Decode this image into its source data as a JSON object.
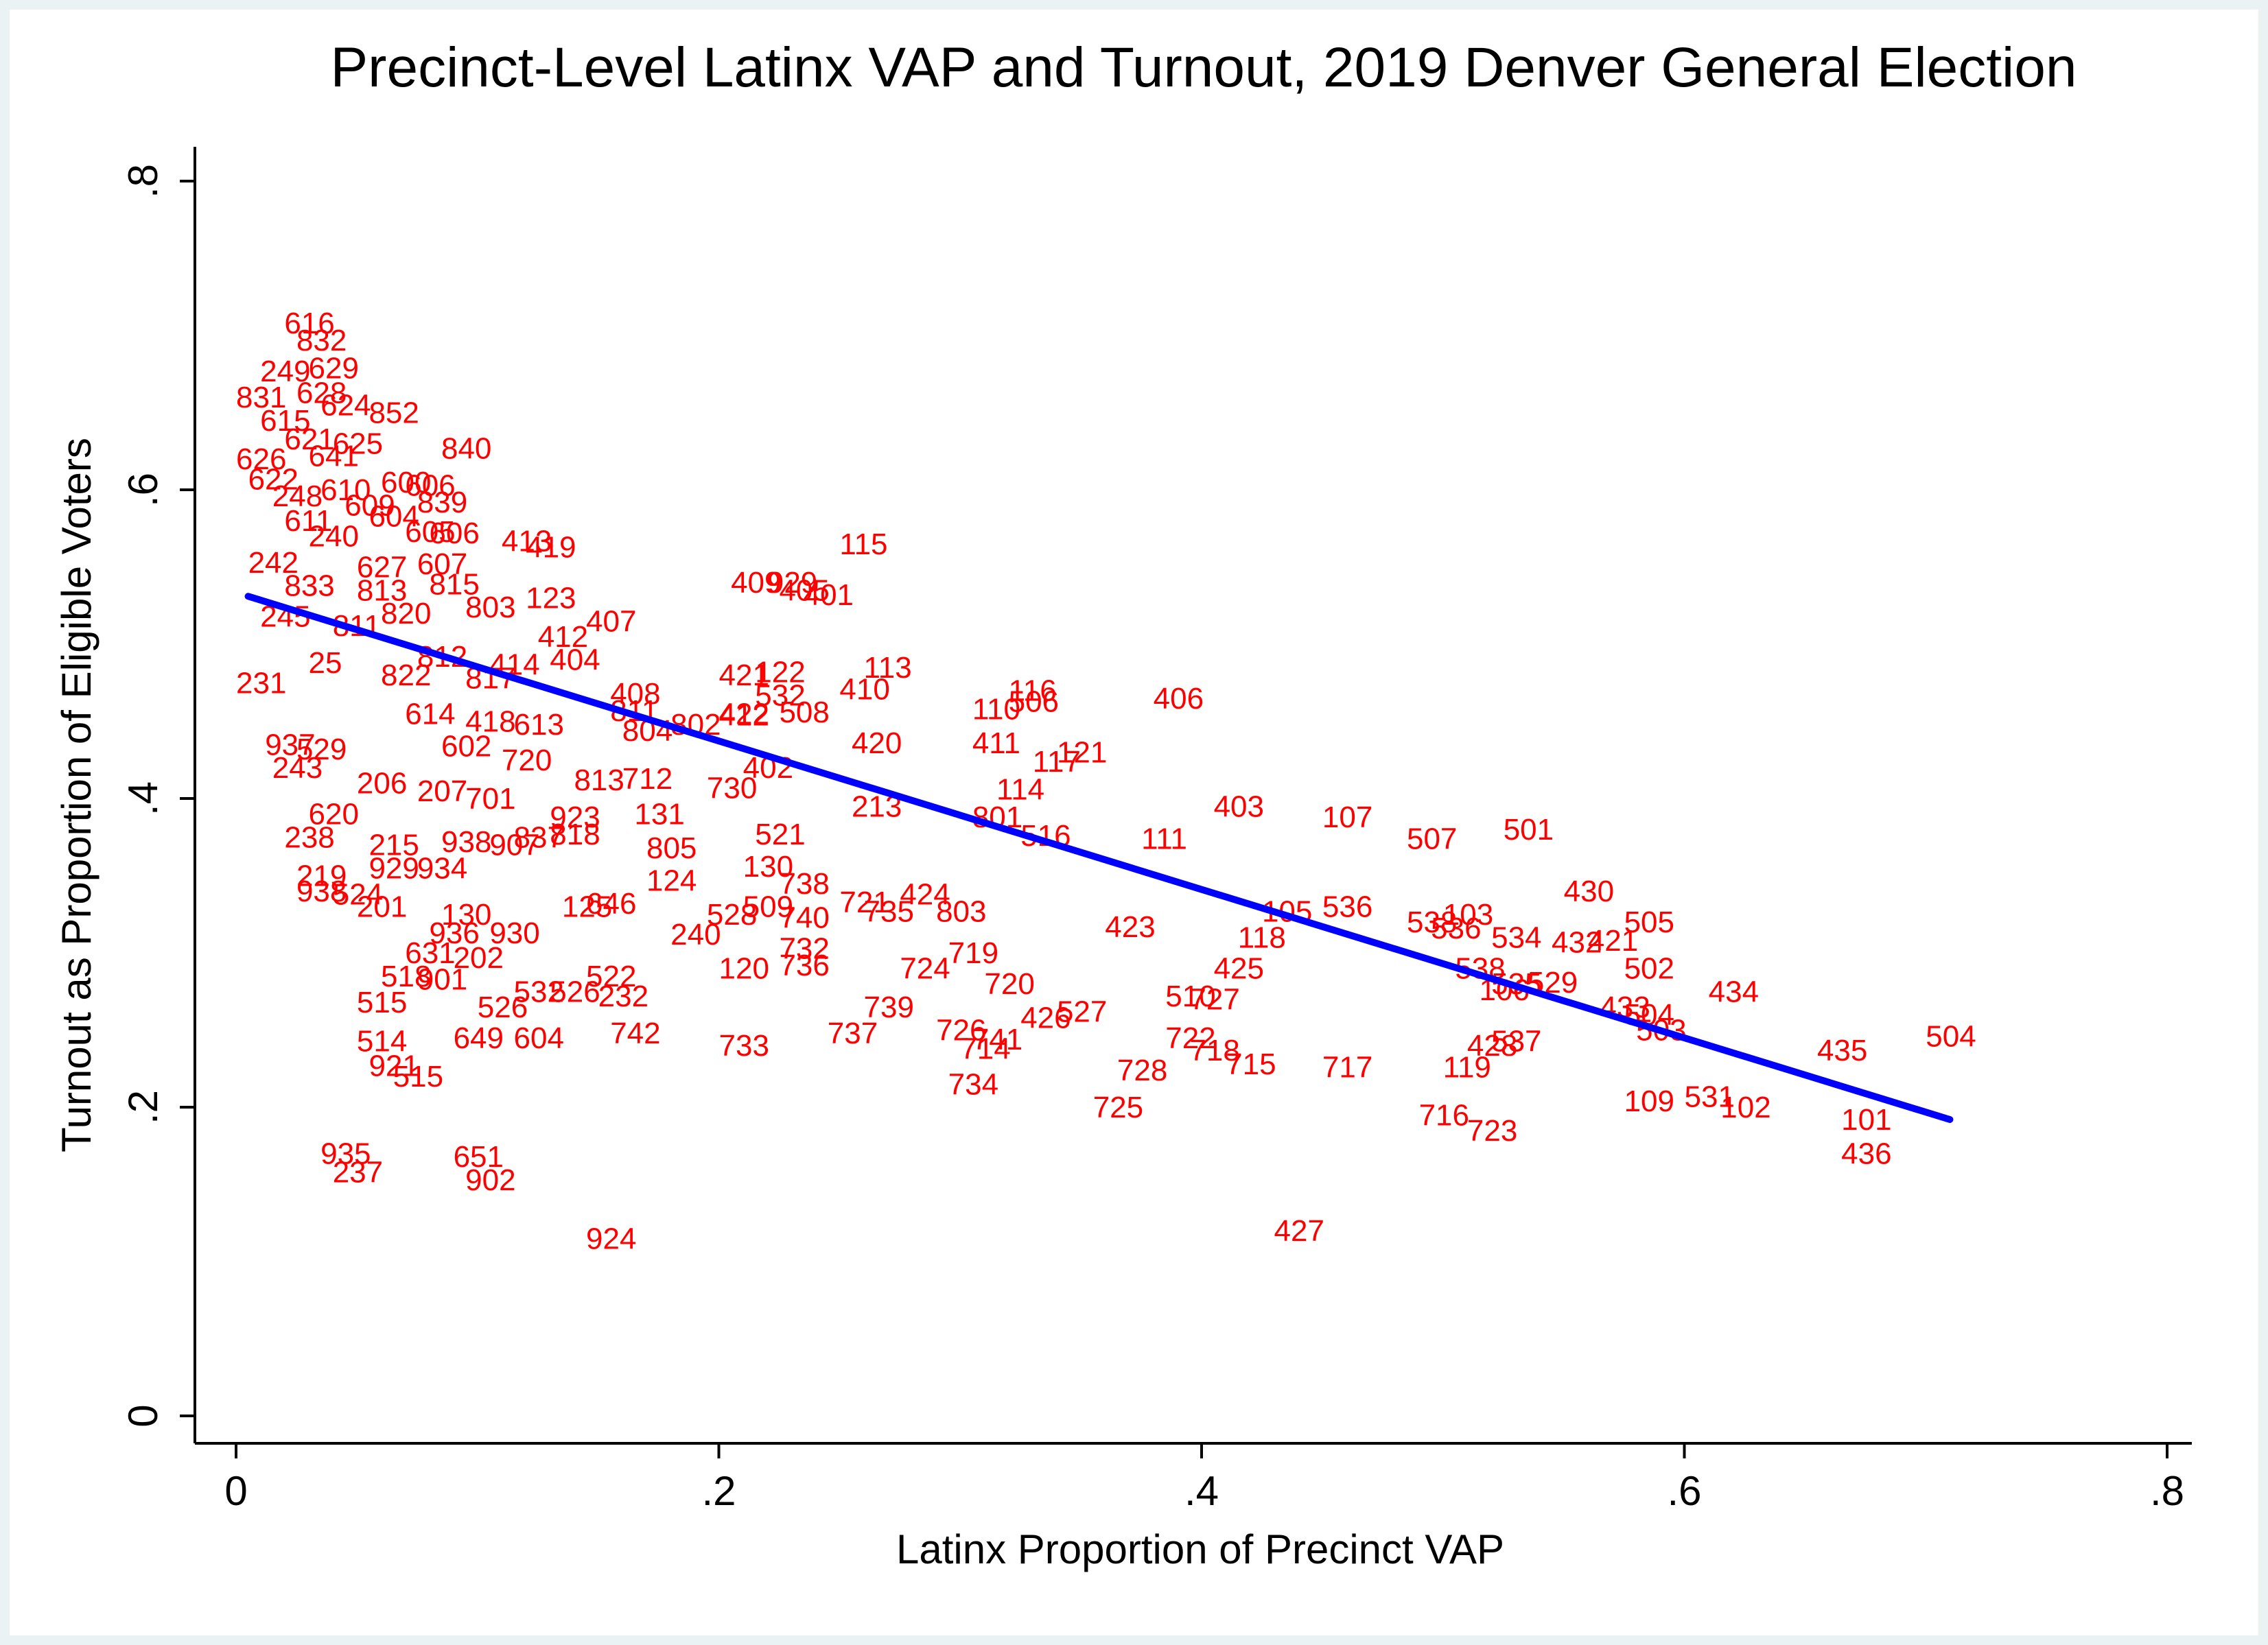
{
  "chart_data": {
    "type": "scatter",
    "title": "Precinct-Level Latinx VAP and Turnout, 2019 Denver General Election",
    "xlabel": "Latinx Proportion of Precinct VAP",
    "ylabel": "Turnout as Proportion of Eligible Voters",
    "xlim": [
      0,
      0.8
    ],
    "ylim": [
      0,
      0.8
    ],
    "xticks": [
      0,
      0.2,
      0.4,
      0.6,
      0.8
    ],
    "xtick_labels": [
      "0",
      ".2",
      ".4",
      ".6",
      ".8"
    ],
    "yticks": [
      0,
      0.2,
      0.4,
      0.6,
      0.8
    ],
    "ytick_labels": [
      "0",
      ".2",
      ".4",
      ".6",
      ".8"
    ],
    "grid": false,
    "marker": "precinct number label",
    "marker_color": "#ff0000",
    "fit_line": {
      "color": "#0000ff",
      "x": [
        0.005,
        0.71
      ],
      "y": [
        0.531,
        0.192
      ]
    },
    "points": [
      {
        "label": "616",
        "x": 0.02,
        "y": 0.708
      },
      {
        "label": "832",
        "x": 0.025,
        "y": 0.697
      },
      {
        "label": "249",
        "x": 0.01,
        "y": 0.677
      },
      {
        "label": "629",
        "x": 0.03,
        "y": 0.679
      },
      {
        "label": "831",
        "x": 0.0,
        "y": 0.66
      },
      {
        "label": "628",
        "x": 0.025,
        "y": 0.663
      },
      {
        "label": "624",
        "x": 0.035,
        "y": 0.655
      },
      {
        "label": "852",
        "x": 0.055,
        "y": 0.65
      },
      {
        "label": "615",
        "x": 0.01,
        "y": 0.645
      },
      {
        "label": "621",
        "x": 0.02,
        "y": 0.633
      },
      {
        "label": "625",
        "x": 0.04,
        "y": 0.63
      },
      {
        "label": "840",
        "x": 0.085,
        "y": 0.627
      },
      {
        "label": "626",
        "x": 0.0,
        "y": 0.62
      },
      {
        "label": "641",
        "x": 0.03,
        "y": 0.622
      },
      {
        "label": "622",
        "x": 0.005,
        "y": 0.607
      },
      {
        "label": "248",
        "x": 0.015,
        "y": 0.596
      },
      {
        "label": "610",
        "x": 0.035,
        "y": 0.6
      },
      {
        "label": "600",
        "x": 0.06,
        "y": 0.605
      },
      {
        "label": "606",
        "x": 0.07,
        "y": 0.603
      },
      {
        "label": "839",
        "x": 0.075,
        "y": 0.592
      },
      {
        "label": "609",
        "x": 0.045,
        "y": 0.59
      },
      {
        "label": "604",
        "x": 0.055,
        "y": 0.583
      },
      {
        "label": "611",
        "x": 0.02,
        "y": 0.58
      },
      {
        "label": "240",
        "x": 0.03,
        "y": 0.57
      },
      {
        "label": "605",
        "x": 0.07,
        "y": 0.573
      },
      {
        "label": "413",
        "x": 0.11,
        "y": 0.567
      },
      {
        "label": "419",
        "x": 0.12,
        "y": 0.563
      },
      {
        "label": "606",
        "x": 0.08,
        "y": 0.572
      },
      {
        "label": "242",
        "x": 0.005,
        "y": 0.553
      },
      {
        "label": "627",
        "x": 0.05,
        "y": 0.55
      },
      {
        "label": "607",
        "x": 0.075,
        "y": 0.552
      },
      {
        "label": "115",
        "x": 0.25,
        "y": 0.565
      },
      {
        "label": "833",
        "x": 0.02,
        "y": 0.538
      },
      {
        "label": "813",
        "x": 0.05,
        "y": 0.535
      },
      {
        "label": "815",
        "x": 0.08,
        "y": 0.539
      },
      {
        "label": "123",
        "x": 0.12,
        "y": 0.53
      },
      {
        "label": "409",
        "x": 0.205,
        "y": 0.54
      },
      {
        "label": "929",
        "x": 0.22,
        "y": 0.54
      },
      {
        "label": "405",
        "x": 0.225,
        "y": 0.535
      },
      {
        "label": "401",
        "x": 0.235,
        "y": 0.532
      },
      {
        "label": "803",
        "x": 0.095,
        "y": 0.524
      },
      {
        "label": "820",
        "x": 0.06,
        "y": 0.52
      },
      {
        "label": "245",
        "x": 0.01,
        "y": 0.518
      },
      {
        "label": "811",
        "x": 0.04,
        "y": 0.512
      },
      {
        "label": "407",
        "x": 0.145,
        "y": 0.515
      },
      {
        "label": "412",
        "x": 0.125,
        "y": 0.505
      },
      {
        "label": "404",
        "x": 0.13,
        "y": 0.49
      },
      {
        "label": "414",
        "x": 0.105,
        "y": 0.487
      },
      {
        "label": "812",
        "x": 0.075,
        "y": 0.492
      },
      {
        "label": "231",
        "x": 0.0,
        "y": 0.475
      },
      {
        "label": "25",
        "x": 0.03,
        "y": 0.488
      },
      {
        "label": "822",
        "x": 0.06,
        "y": 0.48
      },
      {
        "label": "817",
        "x": 0.095,
        "y": 0.478
      },
      {
        "label": "113",
        "x": 0.26,
        "y": 0.485
      },
      {
        "label": "410",
        "x": 0.25,
        "y": 0.471
      },
      {
        "label": "421",
        "x": 0.2,
        "y": 0.48
      },
      {
        "label": "122",
        "x": 0.215,
        "y": 0.482
      },
      {
        "label": "532",
        "x": 0.215,
        "y": 0.467
      },
      {
        "label": "408",
        "x": 0.155,
        "y": 0.468
      },
      {
        "label": "116",
        "x": 0.32,
        "y": 0.47
      },
      {
        "label": "506",
        "x": 0.32,
        "y": 0.463
      },
      {
        "label": "406",
        "x": 0.38,
        "y": 0.465
      },
      {
        "label": "110",
        "x": 0.305,
        "y": 0.458
      },
      {
        "label": "811",
        "x": 0.155,
        "y": 0.457
      },
      {
        "label": "422",
        "x": 0.2,
        "y": 0.455
      },
      {
        "label": "412",
        "x": 0.2,
        "y": 0.454
      },
      {
        "label": "508",
        "x": 0.225,
        "y": 0.456
      },
      {
        "label": "802",
        "x": 0.18,
        "y": 0.448
      },
      {
        "label": "804",
        "x": 0.16,
        "y": 0.444
      },
      {
        "label": "418",
        "x": 0.095,
        "y": 0.45
      },
      {
        "label": "613",
        "x": 0.115,
        "y": 0.448
      },
      {
        "label": "614",
        "x": 0.07,
        "y": 0.455
      },
      {
        "label": "420",
        "x": 0.255,
        "y": 0.436
      },
      {
        "label": "411",
        "x": 0.305,
        "y": 0.436
      },
      {
        "label": "121",
        "x": 0.34,
        "y": 0.43
      },
      {
        "label": "117",
        "x": 0.33,
        "y": 0.424
      },
      {
        "label": "937",
        "x": 0.012,
        "y": 0.435
      },
      {
        "label": "529",
        "x": 0.025,
        "y": 0.432
      },
      {
        "label": "243",
        "x": 0.015,
        "y": 0.42
      },
      {
        "label": "602",
        "x": 0.085,
        "y": 0.434
      },
      {
        "label": "720",
        "x": 0.11,
        "y": 0.425
      },
      {
        "label": "402",
        "x": 0.21,
        "y": 0.42
      },
      {
        "label": "730",
        "x": 0.195,
        "y": 0.407
      },
      {
        "label": "813",
        "x": 0.14,
        "y": 0.412
      },
      {
        "label": "712",
        "x": 0.16,
        "y": 0.413
      },
      {
        "label": "114",
        "x": 0.315,
        "y": 0.406
      },
      {
        "label": "206",
        "x": 0.05,
        "y": 0.41
      },
      {
        "label": "207",
        "x": 0.075,
        "y": 0.405
      },
      {
        "label": "701",
        "x": 0.095,
        "y": 0.4
      },
      {
        "label": "213",
        "x": 0.255,
        "y": 0.395
      },
      {
        "label": "403",
        "x": 0.405,
        "y": 0.395
      },
      {
        "label": "107",
        "x": 0.45,
        "y": 0.388
      },
      {
        "label": "801",
        "x": 0.305,
        "y": 0.388
      },
      {
        "label": "620",
        "x": 0.03,
        "y": 0.39
      },
      {
        "label": "131",
        "x": 0.165,
        "y": 0.39
      },
      {
        "label": "923",
        "x": 0.13,
        "y": 0.388
      },
      {
        "label": "501",
        "x": 0.525,
        "y": 0.38
      },
      {
        "label": "507",
        "x": 0.485,
        "y": 0.374
      },
      {
        "label": "516",
        "x": 0.325,
        "y": 0.376
      },
      {
        "label": "111",
        "x": 0.375,
        "y": 0.374
      },
      {
        "label": "521",
        "x": 0.215,
        "y": 0.377
      },
      {
        "label": "238",
        "x": 0.02,
        "y": 0.375
      },
      {
        "label": "818",
        "x": 0.13,
        "y": 0.377
      },
      {
        "label": "837",
        "x": 0.115,
        "y": 0.375
      },
      {
        "label": "907",
        "x": 0.105,
        "y": 0.37
      },
      {
        "label": "805",
        "x": 0.17,
        "y": 0.368
      },
      {
        "label": "215",
        "x": 0.055,
        "y": 0.37
      },
      {
        "label": "938",
        "x": 0.085,
        "y": 0.372
      },
      {
        "label": "130",
        "x": 0.21,
        "y": 0.356
      },
      {
        "label": "738",
        "x": 0.225,
        "y": 0.345
      },
      {
        "label": "124",
        "x": 0.17,
        "y": 0.347
      },
      {
        "label": "219",
        "x": 0.025,
        "y": 0.35
      },
      {
        "label": "929",
        "x": 0.055,
        "y": 0.355
      },
      {
        "label": "934",
        "x": 0.075,
        "y": 0.355
      },
      {
        "label": "430",
        "x": 0.55,
        "y": 0.34
      },
      {
        "label": "424",
        "x": 0.275,
        "y": 0.338
      },
      {
        "label": "721",
        "x": 0.25,
        "y": 0.333
      },
      {
        "label": "735",
        "x": 0.26,
        "y": 0.327
      },
      {
        "label": "803",
        "x": 0.29,
        "y": 0.327
      },
      {
        "label": "509",
        "x": 0.21,
        "y": 0.33
      },
      {
        "label": "740",
        "x": 0.225,
        "y": 0.323
      },
      {
        "label": "528",
        "x": 0.195,
        "y": 0.325
      },
      {
        "label": "536",
        "x": 0.45,
        "y": 0.33
      },
      {
        "label": "105",
        "x": 0.425,
        "y": 0.327
      },
      {
        "label": "938",
        "x": 0.025,
        "y": 0.34
      },
      {
        "label": "524",
        "x": 0.04,
        "y": 0.338
      },
      {
        "label": "201",
        "x": 0.05,
        "y": 0.33
      },
      {
        "label": "646",
        "x": 0.145,
        "y": 0.332
      },
      {
        "label": "125",
        "x": 0.135,
        "y": 0.33
      },
      {
        "label": "130",
        "x": 0.085,
        "y": 0.325
      },
      {
        "label": "103",
        "x": 0.5,
        "y": 0.325
      },
      {
        "label": "423",
        "x": 0.36,
        "y": 0.317
      },
      {
        "label": "505",
        "x": 0.575,
        "y": 0.32
      },
      {
        "label": "538",
        "x": 0.485,
        "y": 0.32
      },
      {
        "label": "536",
        "x": 0.495,
        "y": 0.316
      },
      {
        "label": "534",
        "x": 0.52,
        "y": 0.31
      },
      {
        "label": "432",
        "x": 0.545,
        "y": 0.307
      },
      {
        "label": "421",
        "x": 0.56,
        "y": 0.308
      },
      {
        "label": "240",
        "x": 0.18,
        "y": 0.312
      },
      {
        "label": "930",
        "x": 0.105,
        "y": 0.313
      },
      {
        "label": "936",
        "x": 0.08,
        "y": 0.313
      },
      {
        "label": "732",
        "x": 0.225,
        "y": 0.303
      },
      {
        "label": "118",
        "x": 0.415,
        "y": 0.31
      },
      {
        "label": "719",
        "x": 0.295,
        "y": 0.3
      },
      {
        "label": "631",
        "x": 0.07,
        "y": 0.3
      },
      {
        "label": "202",
        "x": 0.09,
        "y": 0.297
      },
      {
        "label": "120",
        "x": 0.2,
        "y": 0.29
      },
      {
        "label": "736",
        "x": 0.225,
        "y": 0.292
      },
      {
        "label": "724",
        "x": 0.275,
        "y": 0.29
      },
      {
        "label": "425",
        "x": 0.405,
        "y": 0.29
      },
      {
        "label": "502",
        "x": 0.575,
        "y": 0.29
      },
      {
        "label": "538",
        "x": 0.505,
        "y": 0.29
      },
      {
        "label": "720",
        "x": 0.31,
        "y": 0.28
      },
      {
        "label": "518",
        "x": 0.06,
        "y": 0.285
      },
      {
        "label": "901",
        "x": 0.075,
        "y": 0.283
      },
      {
        "label": "522",
        "x": 0.145,
        "y": 0.285
      },
      {
        "label": "532",
        "x": 0.115,
        "y": 0.275
      },
      {
        "label": "526",
        "x": 0.13,
        "y": 0.275
      },
      {
        "label": "232",
        "x": 0.15,
        "y": 0.272
      },
      {
        "label": "515",
        "x": 0.05,
        "y": 0.268
      },
      {
        "label": "106",
        "x": 0.515,
        "y": 0.276
      },
      {
        "label": "535",
        "x": 0.52,
        "y": 0.28
      },
      {
        "label": "529",
        "x": 0.535,
        "y": 0.281
      },
      {
        "label": "434",
        "x": 0.61,
        "y": 0.275
      },
      {
        "label": "510",
        "x": 0.385,
        "y": 0.272
      },
      {
        "label": "727",
        "x": 0.395,
        "y": 0.27
      },
      {
        "label": "433",
        "x": 0.565,
        "y": 0.265
      },
      {
        "label": "504",
        "x": 0.575,
        "y": 0.26
      },
      {
        "label": "526",
        "x": 0.1,
        "y": 0.265
      },
      {
        "label": "739",
        "x": 0.26,
        "y": 0.265
      },
      {
        "label": "527",
        "x": 0.34,
        "y": 0.262
      },
      {
        "label": "426",
        "x": 0.325,
        "y": 0.258
      },
      {
        "label": "503",
        "x": 0.58,
        "y": 0.25
      },
      {
        "label": "726",
        "x": 0.29,
        "y": 0.25
      },
      {
        "label": "737",
        "x": 0.245,
        "y": 0.248
      },
      {
        "label": "741",
        "x": 0.305,
        "y": 0.244
      },
      {
        "label": "514",
        "x": 0.05,
        "y": 0.243
      },
      {
        "label": "649",
        "x": 0.09,
        "y": 0.245
      },
      {
        "label": "604",
        "x": 0.115,
        "y": 0.245
      },
      {
        "label": "742",
        "x": 0.155,
        "y": 0.248
      },
      {
        "label": "504",
        "x": 0.7,
        "y": 0.246
      },
      {
        "label": "722",
        "x": 0.385,
        "y": 0.245
      },
      {
        "label": "428",
        "x": 0.51,
        "y": 0.24
      },
      {
        "label": "537",
        "x": 0.52,
        "y": 0.243
      },
      {
        "label": "714",
        "x": 0.3,
        "y": 0.238
      },
      {
        "label": "733",
        "x": 0.2,
        "y": 0.24
      },
      {
        "label": "718",
        "x": 0.395,
        "y": 0.237
      },
      {
        "label": "435",
        "x": 0.655,
        "y": 0.237
      },
      {
        "label": "715",
        "x": 0.41,
        "y": 0.228
      },
      {
        "label": "717",
        "x": 0.45,
        "y": 0.226
      },
      {
        "label": "119",
        "x": 0.5,
        "y": 0.226
      },
      {
        "label": "728",
        "x": 0.365,
        "y": 0.224
      },
      {
        "label": "921",
        "x": 0.055,
        "y": 0.227
      },
      {
        "label": "515",
        "x": 0.065,
        "y": 0.22
      },
      {
        "label": "734",
        "x": 0.295,
        "y": 0.215
      },
      {
        "label": "109",
        "x": 0.575,
        "y": 0.204
      },
      {
        "label": "531",
        "x": 0.6,
        "y": 0.207
      },
      {
        "label": "102",
        "x": 0.615,
        "y": 0.2
      },
      {
        "label": "725",
        "x": 0.355,
        "y": 0.2
      },
      {
        "label": "716",
        "x": 0.49,
        "y": 0.195
      },
      {
        "label": "723",
        "x": 0.51,
        "y": 0.185
      },
      {
        "label": "101",
        "x": 0.665,
        "y": 0.192
      },
      {
        "label": "436",
        "x": 0.665,
        "y": 0.17
      },
      {
        "label": "935",
        "x": 0.035,
        "y": 0.17
      },
      {
        "label": "237",
        "x": 0.04,
        "y": 0.158
      },
      {
        "label": "651",
        "x": 0.09,
        "y": 0.168
      },
      {
        "label": "902",
        "x": 0.095,
        "y": 0.153
      },
      {
        "label": "924",
        "x": 0.145,
        "y": 0.115
      },
      {
        "label": "427",
        "x": 0.43,
        "y": 0.12
      }
    ]
  }
}
